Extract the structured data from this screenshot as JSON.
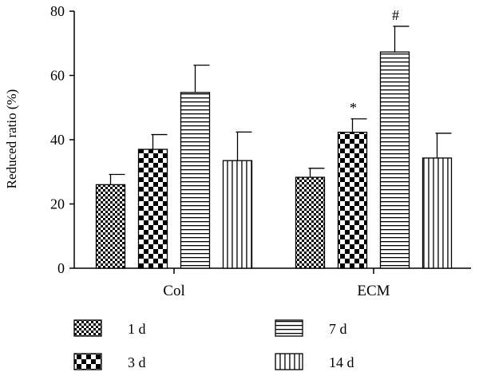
{
  "chart_data": {
    "type": "bar",
    "ylabel": "Reduced ratio (%)",
    "xlabel": "",
    "ylim": [
      0,
      80
    ],
    "yticks": [
      0,
      20,
      40,
      60,
      80
    ],
    "categories": [
      "Col",
      "ECM"
    ],
    "series": [
      {
        "name": "1 d",
        "pattern": "checker-small",
        "values": [
          26,
          28.3
        ],
        "errors": [
          3.2,
          2.8
        ]
      },
      {
        "name": "3 d",
        "pattern": "checker-large",
        "values": [
          37,
          42.3
        ],
        "errors": [
          4.6,
          4.2
        ]
      },
      {
        "name": "7 d",
        "pattern": "horizontal-lines",
        "values": [
          54.7,
          67.3
        ],
        "errors": [
          8.5,
          8.0
        ]
      },
      {
        "name": "14 d",
        "pattern": "vertical-lines",
        "values": [
          33.5,
          34.3
        ],
        "errors": [
          8.9,
          7.7
        ]
      }
    ],
    "annotations": [
      {
        "series": "3 d",
        "category": "ECM",
        "text": "*"
      },
      {
        "series": "7 d",
        "category": "ECM",
        "text": "#"
      }
    ],
    "grid": false,
    "legend_position": "bottom"
  }
}
